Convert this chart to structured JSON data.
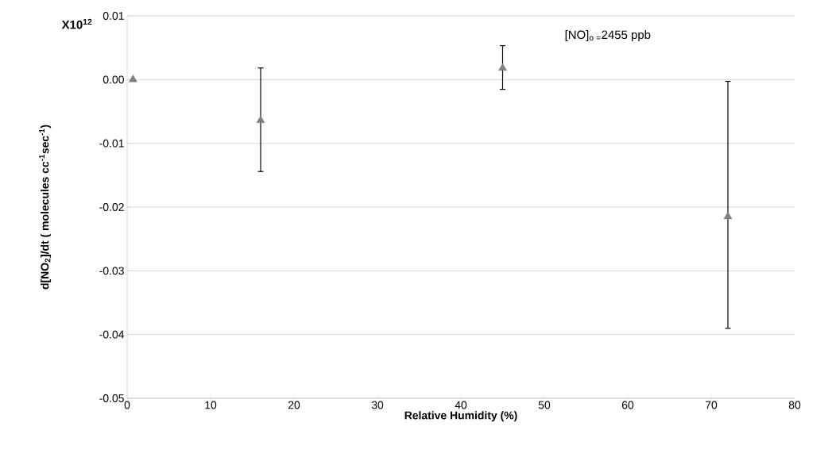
{
  "chart_data": {
    "type": "scatter",
    "xlabel": "Relative Humidity (%)",
    "ylabel": "d[NO$_{2}$]/dt    ( molecules cc$^{-1}$sec$^{-1}$)",
    "annotations": [
      "X10$^{12}$",
      "[NO]$_{o =}$2455 ppb"
    ],
    "x": [
      0.7,
      16,
      45,
      72
    ],
    "values": [
      0.0,
      -0.0064,
      0.0018,
      -0.0215
    ],
    "errors": [
      null,
      [
        -0.0145,
        0.0019
      ],
      [
        -0.0016,
        0.0054
      ],
      [
        -0.0391,
        -0.0002
      ]
    ],
    "color": "#808080",
    "marker": "triangle",
    "grid": "y",
    "xlim": [
      0,
      80
    ],
    "xticks": [
      0,
      10,
      20,
      30,
      40,
      50,
      60,
      70,
      80
    ],
    "ylim": [
      -0.05,
      0.01
    ],
    "yticks": [
      {
        "value": -0.05,
        "label": "-0.05"
      },
      {
        "value": -0.04,
        "label": "-0.04"
      },
      {
        "value": -0.03,
        "label": "-0.03"
      },
      {
        "value": -0.02,
        "label": "-0.02"
      },
      {
        "value": -0.01,
        "label": "-0.01"
      },
      {
        "value": 0,
        "label": "0.00"
      },
      {
        "value": 0.01,
        "label": "0.01"
      }
    ]
  }
}
